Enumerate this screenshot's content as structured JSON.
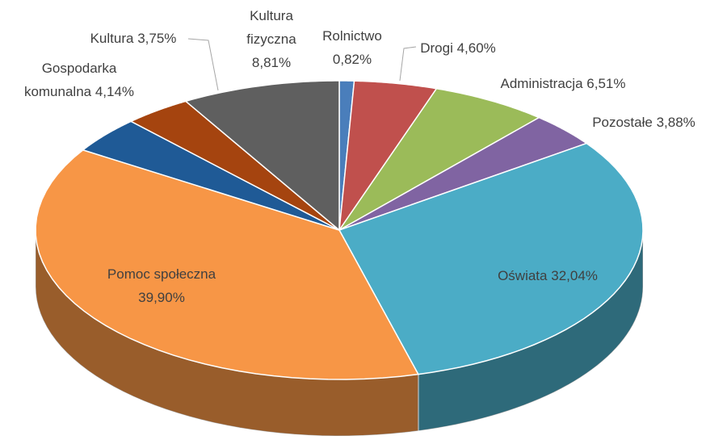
{
  "chart_data": {
    "type": "pie3d",
    "categories": [
      "Rolnictwo",
      "Drogi",
      "Administracja",
      "Pozostałe",
      "Oświata",
      "Pomoc społeczna",
      "Gospodarka komunalna",
      "Kultura",
      "Kultura fizyczna"
    ],
    "values": [
      0.82,
      4.6,
      6.51,
      3.88,
      32.04,
      39.9,
      4.14,
      3.75,
      8.81
    ],
    "value_labels": [
      "0,82%",
      "4,60%",
      "6,51%",
      "3,88%",
      "32,04%",
      "39,90%",
      "4,14%",
      "3,75%",
      "8,81%"
    ],
    "colors": [
      "#4a7ebb",
      "#c0504d",
      "#9bbb59",
      "#8064a2",
      "#4bacc6",
      "#f79646",
      "#1f5a96",
      "#a5440f",
      "#5f5f5f"
    ]
  }
}
